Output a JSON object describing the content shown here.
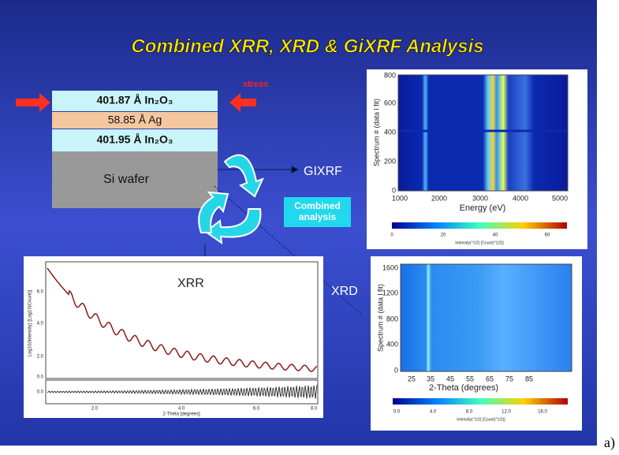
{
  "title": "Combined XRR, XRD & GiXRF Analysis",
  "stress": "stress",
  "layers": [
    "401.87 Å In₂O₃",
    "58.85 Å Ag",
    "401.95 Å In₂O₃",
    "Si wafer"
  ],
  "labels": {
    "gixrf": "GIXRF",
    "combined": "Combined analysis",
    "xrr": "XRR",
    "xrd": "XRD"
  },
  "gixrf_panel": {
    "ylabel": "Spectrum # (data l fit)",
    "yticks": [
      "0",
      "200",
      "400",
      "600",
      "800"
    ],
    "xlabel": "Energy (eV)",
    "xticks": [
      "1000",
      "2000",
      "3000",
      "4000",
      "5000"
    ],
    "colorbar_ticks": [
      "0",
      "20",
      "40",
      "60"
    ],
    "colorbar_label": "Intensity(^1/2) [Count(^1/2)]"
  },
  "xrd_panel": {
    "ylabel": "Spectrum # (data l fit)",
    "yticks": [
      "0",
      "400",
      "800",
      "1200",
      "1600"
    ],
    "xlabel": "2-Theta (degrees)",
    "xticks": [
      "25",
      "35",
      "45",
      "55",
      "65",
      "75",
      "85"
    ],
    "colorbar_ticks": [
      "0.0",
      "4.0",
      "8.0",
      "12.0",
      "16.0"
    ],
    "colorbar_label": "Intensity(^1/2) [Count(^1/2)]"
  },
  "xrr_panel": {
    "ylabel": "Log10(Intensity) [Log10(Count)]",
    "yticks": [
      "6.0",
      "4.0",
      "2.0",
      "0.0"
    ],
    "residual_tick": "0.0",
    "xlabel": "2-Theta [degrees]",
    "xticks": [
      "2.0",
      "4.0",
      "6.0",
      "8.0"
    ]
  },
  "caption": "a)"
}
